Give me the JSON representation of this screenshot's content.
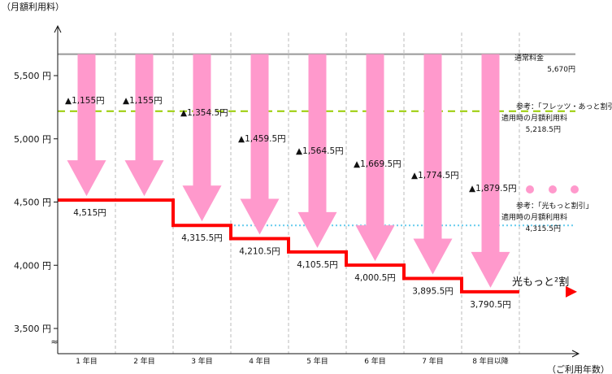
{
  "chart_data": {
    "type": "line",
    "title": "",
    "ylabel": "（月額利用料）",
    "xlabel": "（ご利用年数）",
    "ylim": [
      3500,
      5700
    ],
    "yticks": [
      {
        "value": 3500,
        "label": "3,500 円"
      },
      {
        "value": 4000,
        "label": "4,000 円"
      },
      {
        "value": 4500,
        "label": "4,500 円"
      },
      {
        "value": 5000,
        "label": "5,000 円"
      },
      {
        "value": 5500,
        "label": "5,500 円"
      }
    ],
    "categories": [
      "1 年目",
      "2 年目",
      "3 年目",
      "4 年目",
      "5 年目",
      "6 年目",
      "7 年目",
      "8 年目以降"
    ],
    "series": [
      {
        "name": "光もっと²割",
        "color": "#ff0000",
        "values": [
          4515,
          4515,
          4315.5,
          4210.5,
          4105.5,
          4000.5,
          3895.5,
          3790.5
        ],
        "labels": [
          "4,515円",
          "",
          "4,315.5円",
          "4,210.5円",
          "4,105.5円",
          "4,000.5円",
          "3,895.5円",
          "3,790.5円"
        ]
      }
    ],
    "reference_lines": [
      {
        "value": 5670,
        "color": "#999999",
        "style": "solid",
        "label_lines": [
          "通常料金",
          "5,670円"
        ]
      },
      {
        "value": 5218.5,
        "color": "#99cc00",
        "style": "dashed",
        "label_lines": [
          "参考：「フレッツ・あっと割引」",
          "適用時の月額利用料",
          "5,218.5円"
        ]
      },
      {
        "value": 4315.5,
        "color": "#66ccee",
        "style": "dotted",
        "label_lines": [
          "参考：「光もっと割引」",
          "適用時の月額利用料",
          "4,315.5円"
        ]
      }
    ],
    "discounts": [
      "▲1,155円",
      "▲1,155円",
      "▲1,354.5円",
      "▲1,459.5円",
      "▲1,564.5円",
      "▲1,669.5円",
      "▲1,774.5円",
      "▲1,879.5円"
    ],
    "arrow_color": "#ff99cc",
    "axis_break": "≈",
    "grid": false
  }
}
